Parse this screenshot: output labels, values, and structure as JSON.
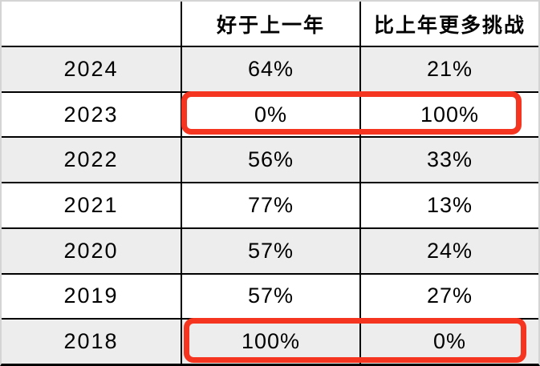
{
  "table": {
    "header": {
      "year_label": "",
      "better_label": "好于上一年",
      "challenge_label": "比上年更多挑战"
    },
    "rows": [
      {
        "year": "2024",
        "better": "64%",
        "challenge": "21%"
      },
      {
        "year": "2023",
        "better": "0%",
        "challenge": "100%"
      },
      {
        "year": "2022",
        "better": "56%",
        "challenge": "33%"
      },
      {
        "year": "2021",
        "better": "77%",
        "challenge": "13%"
      },
      {
        "year": "2020",
        "better": "57%",
        "challenge": "24%"
      },
      {
        "year": "2019",
        "better": "57%",
        "challenge": "27%"
      },
      {
        "year": "2018",
        "better": "100%",
        "challenge": "0%"
      }
    ],
    "highlighted_years": [
      "2023",
      "2018"
    ]
  },
  "colors": {
    "highlight_red": "#f53520",
    "row_alt_bg": "#ededed",
    "grid_line": "#000000",
    "outer_border": "#d4d4d4",
    "text": "#000000"
  },
  "chart_data": {
    "type": "table",
    "columns": [
      "",
      "好于上一年",
      "比上年更多挑战"
    ],
    "rows": [
      [
        "2024",
        "64%",
        "21%"
      ],
      [
        "2023",
        "0%",
        "100%"
      ],
      [
        "2022",
        "56%",
        "33%"
      ],
      [
        "2021",
        "77%",
        "13%"
      ],
      [
        "2020",
        "57%",
        "24%"
      ],
      [
        "2019",
        "57%",
        "27%"
      ],
      [
        "2018",
        "100%",
        "0%"
      ]
    ],
    "highlighted_rows": [
      "2023",
      "2018"
    ],
    "notes": "Red rounded rectangles outline the two percentage cells of the 2023 row (0% / 100%) and the 2018 row (100% / 0%). Rows alternate white and light-gray backgrounds starting with gray at 2024."
  }
}
